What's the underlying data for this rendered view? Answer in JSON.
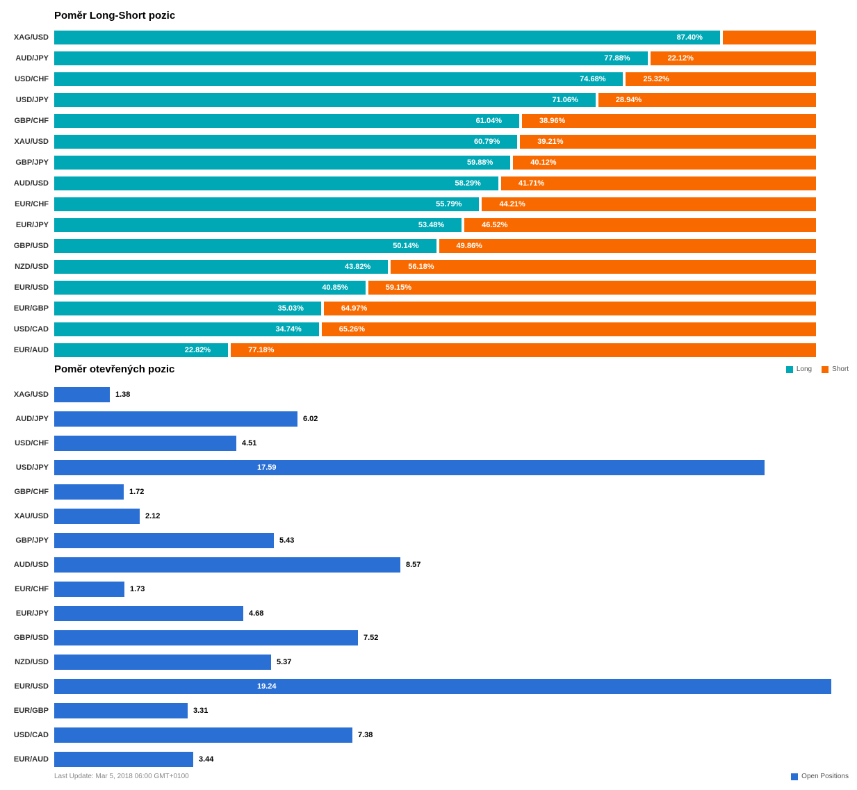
{
  "colors": {
    "long": "#00A7B5",
    "short": "#F86A00",
    "open": "#2A6FD4"
  },
  "chart_data": [
    {
      "type": "bar",
      "orientation": "horizontal",
      "stacked": true,
      "title": "Poměr Long-Short pozic",
      "unit": "%",
      "categories": [
        "XAG/USD",
        "AUD/JPY",
        "USD/CHF",
        "USD/JPY",
        "GBP/CHF",
        "XAU/USD",
        "GBP/JPY",
        "AUD/USD",
        "EUR/CHF",
        "EUR/JPY",
        "GBP/USD",
        "NZD/USD",
        "EUR/USD",
        "EUR/GBP",
        "USD/CAD",
        "EUR/AUD"
      ],
      "series": [
        {
          "name": "Long",
          "color": "#00A7B5",
          "values": [
            87.4,
            77.88,
            74.68,
            71.06,
            61.04,
            60.79,
            59.88,
            58.29,
            55.79,
            53.48,
            50.14,
            43.82,
            40.85,
            35.03,
            34.74,
            22.82
          ],
          "labels": [
            "87.40%",
            "77.88%",
            "74.68%",
            "71.06%",
            "61.04%",
            "60.79%",
            "59.88%",
            "58.29%",
            "55.79%",
            "53.48%",
            "50.14%",
            "43.82%",
            "40.85%",
            "35.03%",
            "34.74%",
            "22.82%"
          ]
        },
        {
          "name": "Short",
          "color": "#F86A00",
          "values": [
            12.6,
            22.12,
            25.32,
            28.94,
            38.96,
            39.21,
            40.12,
            41.71,
            44.21,
            46.52,
            49.86,
            56.18,
            59.15,
            64.97,
            65.26,
            77.18
          ],
          "labels": [
            "",
            "22.12%",
            "25.32%",
            "28.94%",
            "38.96%",
            "39.21%",
            "40.12%",
            "41.71%",
            "44.21%",
            "46.52%",
            "49.86%",
            "56.18%",
            "59.15%",
            "64.97%",
            "65.26%",
            "77.18%"
          ]
        }
      ],
      "legend": [
        "Long",
        "Short"
      ],
      "legend_position": "right"
    },
    {
      "type": "bar",
      "orientation": "horizontal",
      "title": "Poměr otevřených pozic",
      "categories": [
        "XAG/USD",
        "AUD/JPY",
        "USD/CHF",
        "USD/JPY",
        "GBP/CHF",
        "XAU/USD",
        "GBP/JPY",
        "AUD/USD",
        "EUR/CHF",
        "EUR/JPY",
        "GBP/USD",
        "NZD/USD",
        "EUR/USD",
        "EUR/GBP",
        "USD/CAD",
        "EUR/AUD"
      ],
      "values": [
        1.38,
        6.02,
        4.51,
        17.59,
        1.72,
        2.12,
        5.43,
        8.57,
        1.73,
        4.68,
        7.52,
        5.37,
        19.24,
        3.31,
        7.38,
        3.44
      ],
      "labels": [
        "1.38",
        "6.02",
        "4.51",
        "17.59",
        "1.72",
        "2.12",
        "5.43",
        "8.57",
        "1.73",
        "4.68",
        "7.52",
        "5.37",
        "19.24",
        "3.31",
        "7.38",
        "3.44"
      ],
      "xlim": [
        0,
        19.24
      ],
      "legend": [
        "Open Positions"
      ],
      "legend_position": "bottom-right"
    }
  ],
  "footer": {
    "last_update": "Last Update: Mar 5, 2018 06:00 GMT+0100"
  }
}
